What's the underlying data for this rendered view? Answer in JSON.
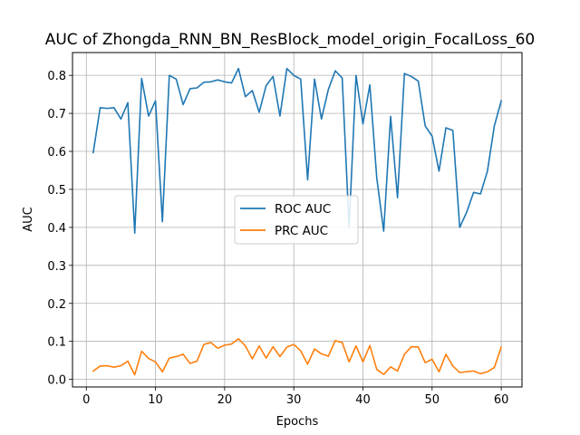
{
  "chart_data": {
    "type": "line",
    "title": "AUC of Zhongda_RNN_BN_ResBlock_model_origin_FocalLoss_60",
    "xlabel": "Epochs",
    "ylabel": "AUC",
    "xlim": [
      -2,
      63
    ],
    "ylim": [
      -0.02,
      0.86
    ],
    "xticks": [
      0,
      10,
      20,
      30,
      40,
      50,
      60
    ],
    "yticks": [
      0.0,
      0.1,
      0.2,
      0.3,
      0.4,
      0.5,
      0.6,
      0.7,
      0.8
    ],
    "ytick_labels": [
      "0.0",
      "0.1",
      "0.2",
      "0.3",
      "0.4",
      "0.5",
      "0.6",
      "0.7",
      "0.8"
    ],
    "grid": true,
    "legend_position": "center-right",
    "x": [
      1,
      2,
      3,
      4,
      5,
      6,
      7,
      8,
      9,
      10,
      11,
      12,
      13,
      14,
      15,
      16,
      17,
      18,
      19,
      20,
      21,
      22,
      23,
      24,
      25,
      26,
      27,
      28,
      29,
      30,
      31,
      32,
      33,
      34,
      35,
      36,
      37,
      38,
      39,
      40,
      41,
      42,
      43,
      44,
      45,
      46,
      47,
      48,
      49,
      50,
      51,
      52,
      53,
      54,
      55,
      56,
      57,
      58,
      59,
      60
    ],
    "series": [
      {
        "name": "ROC AUC",
        "color": "#1f77b4",
        "values": [
          0.597,
          0.715,
          0.713,
          0.715,
          0.685,
          0.728,
          0.385,
          0.792,
          0.693,
          0.733,
          0.415,
          0.8,
          0.79,
          0.723,
          0.765,
          0.767,
          0.782,
          0.783,
          0.788,
          0.783,
          0.78,
          0.818,
          0.744,
          0.76,
          0.703,
          0.773,
          0.797,
          0.693,
          0.818,
          0.8,
          0.79,
          0.525,
          0.79,
          0.685,
          0.763,
          0.812,
          0.793,
          0.4,
          0.8,
          0.672,
          0.775,
          0.53,
          0.39,
          0.692,
          0.478,
          0.805,
          0.797,
          0.785,
          0.667,
          0.64,
          0.548,
          0.662,
          0.655,
          0.4,
          0.44,
          0.492,
          0.488,
          0.548,
          0.667,
          0.733
        ]
      },
      {
        "name": "PRC AUC",
        "color": "#ff7f0e",
        "values": [
          0.022,
          0.035,
          0.036,
          0.032,
          0.036,
          0.048,
          0.012,
          0.074,
          0.055,
          0.046,
          0.02,
          0.056,
          0.06,
          0.066,
          0.042,
          0.048,
          0.092,
          0.097,
          0.082,
          0.09,
          0.093,
          0.107,
          0.088,
          0.054,
          0.088,
          0.056,
          0.086,
          0.06,
          0.085,
          0.092,
          0.075,
          0.04,
          0.08,
          0.067,
          0.061,
          0.102,
          0.097,
          0.046,
          0.088,
          0.046,
          0.089,
          0.026,
          0.013,
          0.033,
          0.022,
          0.066,
          0.086,
          0.085,
          0.044,
          0.053,
          0.02,
          0.066,
          0.035,
          0.018,
          0.02,
          0.022,
          0.015,
          0.02,
          0.031,
          0.085
        ]
      }
    ]
  }
}
